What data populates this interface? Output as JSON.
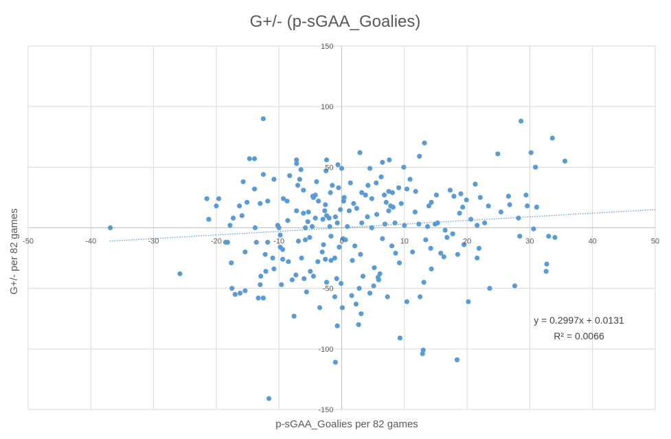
{
  "chart_data": {
    "type": "scatter",
    "title": "G+/- (p-sGAA_Goalies)",
    "xlabel": "p-sGAA_Goalies per 82 games",
    "ylabel": "G+/- per 82 games",
    "xlim": [
      -50,
      50
    ],
    "ylim": [
      -150,
      150
    ],
    "x_ticks": [
      -50,
      -40,
      -30,
      -20,
      -10,
      0,
      10,
      20,
      30,
      40,
      50
    ],
    "y_ticks": [
      -150,
      -100,
      -50,
      50,
      100,
      150
    ],
    "grid": true,
    "marker_color": "#5b9bd5",
    "trendline": {
      "type": "linear",
      "slope": 0.2997,
      "intercept": 0.0131,
      "x_range": [
        -37,
        50
      ],
      "equation_label": "y = 0.2997x + 0.0131",
      "r2_label": "R² = 0.0066",
      "style": "dotted",
      "color": "#5b9bd5"
    },
    "points": [
      [
        -36.9,
        0
      ],
      [
        -25.8,
        -38
      ],
      [
        -21.5,
        24
      ],
      [
        -21.2,
        7
      ],
      [
        -20,
        18
      ],
      [
        -19.6,
        24
      ],
      [
        -18.5,
        -12
      ],
      [
        -18.2,
        -12
      ],
      [
        -17.8,
        2
      ],
      [
        -17.6,
        -29
      ],
      [
        -17.5,
        -50
      ],
      [
        -17.3,
        8
      ],
      [
        -17,
        -55
      ],
      [
        -16.3,
        18
      ],
      [
        -16.2,
        -54
      ],
      [
        -15.9,
        10
      ],
      [
        -15.7,
        38
      ],
      [
        -15.4,
        -20
      ],
      [
        -15.4,
        -52
      ],
      [
        -15.1,
        21
      ],
      [
        -14.7,
        57
      ],
      [
        -13.9,
        57
      ],
      [
        -13.9,
        32
      ],
      [
        -13.8,
        0
      ],
      [
        -13.6,
        -12
      ],
      [
        -13.3,
        -58
      ],
      [
        -13,
        -47
      ],
      [
        -13,
        20
      ],
      [
        -12.9,
        -40
      ],
      [
        -12.5,
        44
      ],
      [
        -12.5,
        -58
      ],
      [
        -12.5,
        90
      ],
      [
        -12.2,
        -22
      ],
      [
        -12.1,
        -36
      ],
      [
        -11.8,
        22
      ],
      [
        -11.8,
        -12
      ],
      [
        -11.6,
        -141
      ],
      [
        -11,
        -25
      ],
      [
        -10.8,
        -34
      ],
      [
        -10.8,
        40
      ],
      [
        -10.2,
        2
      ],
      [
        -10,
        0
      ],
      [
        -9.8,
        -16
      ],
      [
        -9.8,
        -6
      ],
      [
        -9.6,
        -47
      ],
      [
        -9.4,
        -26
      ],
      [
        -9.4,
        -18
      ],
      [
        -9.3,
        24
      ],
      [
        -8.7,
        22
      ],
      [
        -8.6,
        6
      ],
      [
        -8.5,
        -28
      ],
      [
        -8.3,
        43
      ],
      [
        -7.9,
        -43
      ],
      [
        -7.6,
        -73
      ],
      [
        -7.3,
        -39
      ],
      [
        -7.2,
        14
      ],
      [
        -7.2,
        56
      ],
      [
        -7.2,
        53
      ],
      [
        -7,
        35
      ],
      [
        -6.9,
        -11
      ],
      [
        -6.7,
        40
      ],
      [
        -6.5,
        48
      ],
      [
        -6.4,
        -25
      ],
      [
        -6.1,
        12
      ],
      [
        -6.1,
        31
      ],
      [
        -6,
        -42
      ],
      [
        -5.8,
        0
      ],
      [
        -5.8,
        -10
      ],
      [
        -5.6,
        -53
      ],
      [
        -5.4,
        5
      ],
      [
        -5.3,
        13
      ],
      [
        -5.1,
        -8
      ],
      [
        -5,
        -36
      ],
      [
        -4.7,
        1
      ],
      [
        -4.6,
        26
      ],
      [
        -4.5,
        -40
      ],
      [
        -4.5,
        25
      ],
      [
        -4.2,
        27
      ],
      [
        -4.2,
        8
      ],
      [
        -4,
        38
      ],
      [
        -3.8,
        -28
      ],
      [
        -3.7,
        22
      ],
      [
        -3.5,
        -66
      ],
      [
        -3.1,
        -20
      ],
      [
        -3,
        7
      ],
      [
        -2.9,
        -14
      ],
      [
        -2.7,
        14
      ],
      [
        -2.6,
        19
      ],
      [
        -2.6,
        -26
      ],
      [
        -2.5,
        47
      ],
      [
        -2.4,
        56
      ],
      [
        -2.4,
        10
      ],
      [
        -2.4,
        -45
      ],
      [
        -2,
        8
      ],
      [
        -1.9,
        1
      ],
      [
        -1.8,
        29
      ],
      [
        -1.7,
        -27
      ],
      [
        -1.7,
        -7
      ],
      [
        -1.5,
        35
      ],
      [
        -1.1,
        -57
      ],
      [
        -1.1,
        -25
      ],
      [
        -1,
        9
      ],
      [
        -1,
        -111
      ],
      [
        -0.8,
        -42
      ],
      [
        -0.7,
        -81
      ],
      [
        -0.7,
        4
      ],
      [
        -0.6,
        52
      ],
      [
        -0.5,
        33
      ],
      [
        -0.4,
        -16
      ],
      [
        -0.2,
        15
      ],
      [
        -0.1,
        -46
      ],
      [
        0,
        49
      ],
      [
        0.1,
        -66
      ],
      [
        0.2,
        -9
      ],
      [
        0.3,
        22
      ],
      [
        0.4,
        25
      ],
      [
        0.6,
        -10
      ],
      [
        0.9,
        1
      ],
      [
        1.2,
        14
      ],
      [
        1.4,
        37
      ],
      [
        1.6,
        -56
      ],
      [
        1.7,
        -27
      ],
      [
        1.9,
        20
      ],
      [
        2.1,
        -15
      ],
      [
        2.3,
        -63
      ],
      [
        2.4,
        16
      ],
      [
        2.7,
        -80
      ],
      [
        2.8,
        -50
      ],
      [
        2.9,
        62
      ],
      [
        3,
        -22
      ],
      [
        3.1,
        -71
      ],
      [
        3.2,
        29
      ],
      [
        3.2,
        4
      ],
      [
        3.4,
        -40
      ],
      [
        3.8,
        27
      ],
      [
        4.1,
        9
      ],
      [
        4.2,
        35
      ],
      [
        4.5,
        -54
      ],
      [
        4.5,
        49
      ],
      [
        4.8,
        24
      ],
      [
        4.8,
        0
      ],
      [
        5.1,
        -48
      ],
      [
        5.2,
        -33
      ],
      [
        5.5,
        37
      ],
      [
        5.6,
        11
      ],
      [
        5.8,
        -41
      ],
      [
        5.9,
        -43
      ],
      [
        6.1,
        -38
      ],
      [
        6.3,
        42
      ],
      [
        6.5,
        -9
      ],
      [
        6.5,
        54
      ],
      [
        6.8,
        27
      ],
      [
        6.9,
        3
      ],
      [
        7.1,
        21
      ],
      [
        7.3,
        -57
      ],
      [
        7.5,
        30
      ],
      [
        7.5,
        14
      ],
      [
        7.6,
        56
      ],
      [
        7.8,
        18
      ],
      [
        8,
        -15
      ],
      [
        8.1,
        29
      ],
      [
        8.2,
        17
      ],
      [
        8.5,
        4
      ],
      [
        8.6,
        -21
      ],
      [
        9.1,
        33
      ],
      [
        9.2,
        -29
      ],
      [
        9.3,
        -91
      ],
      [
        9.5,
        20
      ],
      [
        9.9,
        50
      ],
      [
        10,
        2
      ],
      [
        10.4,
        32
      ],
      [
        10.4,
        -61
      ],
      [
        10.9,
        40
      ],
      [
        11.3,
        -20
      ],
      [
        11.7,
        13
      ],
      [
        11.8,
        30
      ],
      [
        12.3,
        3
      ],
      [
        12.4,
        59
      ],
      [
        12.5,
        -57
      ],
      [
        12.9,
        -104
      ],
      [
        13,
        -101
      ],
      [
        13.1,
        -45
      ],
      [
        13.2,
        70
      ],
      [
        13.4,
        -10
      ],
      [
        13.7,
        1
      ],
      [
        13.9,
        18
      ],
      [
        14.2,
        -17
      ],
      [
        14.3,
        -34
      ],
      [
        14.3,
        21
      ],
      [
        14.9,
        3
      ],
      [
        15.1,
        27
      ],
      [
        15.3,
        4
      ],
      [
        15.8,
        -21
      ],
      [
        16.3,
        -24
      ],
      [
        16.5,
        -2
      ],
      [
        16.8,
        -8
      ],
      [
        17.3,
        31
      ],
      [
        17.7,
        -5
      ],
      [
        17.9,
        26
      ],
      [
        18.4,
        -109
      ],
      [
        18.5,
        -22
      ],
      [
        18.8,
        12
      ],
      [
        19,
        28
      ],
      [
        19.3,
        17
      ],
      [
        19.5,
        -14
      ],
      [
        19.9,
        23
      ],
      [
        20.2,
        -61
      ],
      [
        20.6,
        7
      ],
      [
        21.3,
        36
      ],
      [
        21.6,
        -25
      ],
      [
        21.6,
        2
      ],
      [
        21.9,
        -17
      ],
      [
        22.1,
        25
      ],
      [
        22.8,
        4
      ],
      [
        23.4,
        18
      ],
      [
        23.6,
        -50
      ],
      [
        24.9,
        61
      ],
      [
        25.4,
        13
      ],
      [
        26.6,
        26
      ],
      [
        26.8,
        19
      ],
      [
        27.6,
        -48
      ],
      [
        28.2,
        8
      ],
      [
        28.4,
        -7
      ],
      [
        28.6,
        88
      ],
      [
        29.4,
        27
      ],
      [
        29.6,
        18
      ],
      [
        30.2,
        62
      ],
      [
        30.6,
        -1
      ],
      [
        30.9,
        50
      ],
      [
        31.1,
        17
      ],
      [
        32.6,
        -36
      ],
      [
        32.7,
        -30
      ],
      [
        33,
        -7
      ],
      [
        33.6,
        74
      ],
      [
        34,
        -8
      ],
      [
        35.6,
        55
      ]
    ]
  }
}
